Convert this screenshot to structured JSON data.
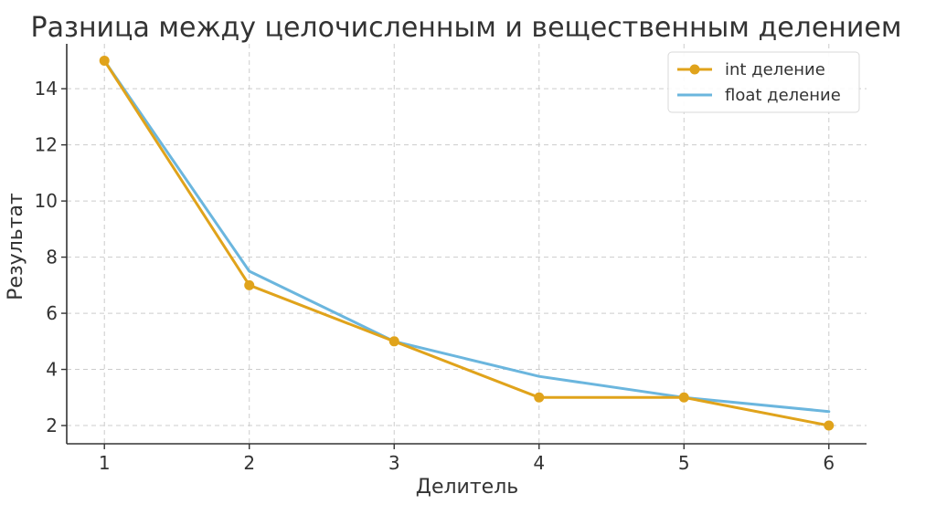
{
  "chart_data": {
    "type": "line",
    "title": "Разница между целочисленным и вещественным делением",
    "xlabel": "Делитель",
    "ylabel": "Результат",
    "x": [
      1,
      2,
      3,
      4,
      5,
      6
    ],
    "xlim": [
      0.74,
      6.26
    ],
    "ylim": [
      1.35,
      15.6
    ],
    "xticks": [
      1,
      2,
      3,
      4,
      5,
      6
    ],
    "yticks": [
      2,
      4,
      6,
      8,
      10,
      12,
      14
    ],
    "grid": true,
    "legend_position": "top-right",
    "series": [
      {
        "name": "int деление",
        "values": [
          15,
          7,
          5,
          3,
          3,
          2
        ],
        "color": "#E0A31B",
        "marker": "circle"
      },
      {
        "name": "float деление",
        "values": [
          15,
          7.5,
          5,
          3.75,
          3,
          2.5
        ],
        "color": "#6BB6DE",
        "marker": "none"
      }
    ]
  }
}
